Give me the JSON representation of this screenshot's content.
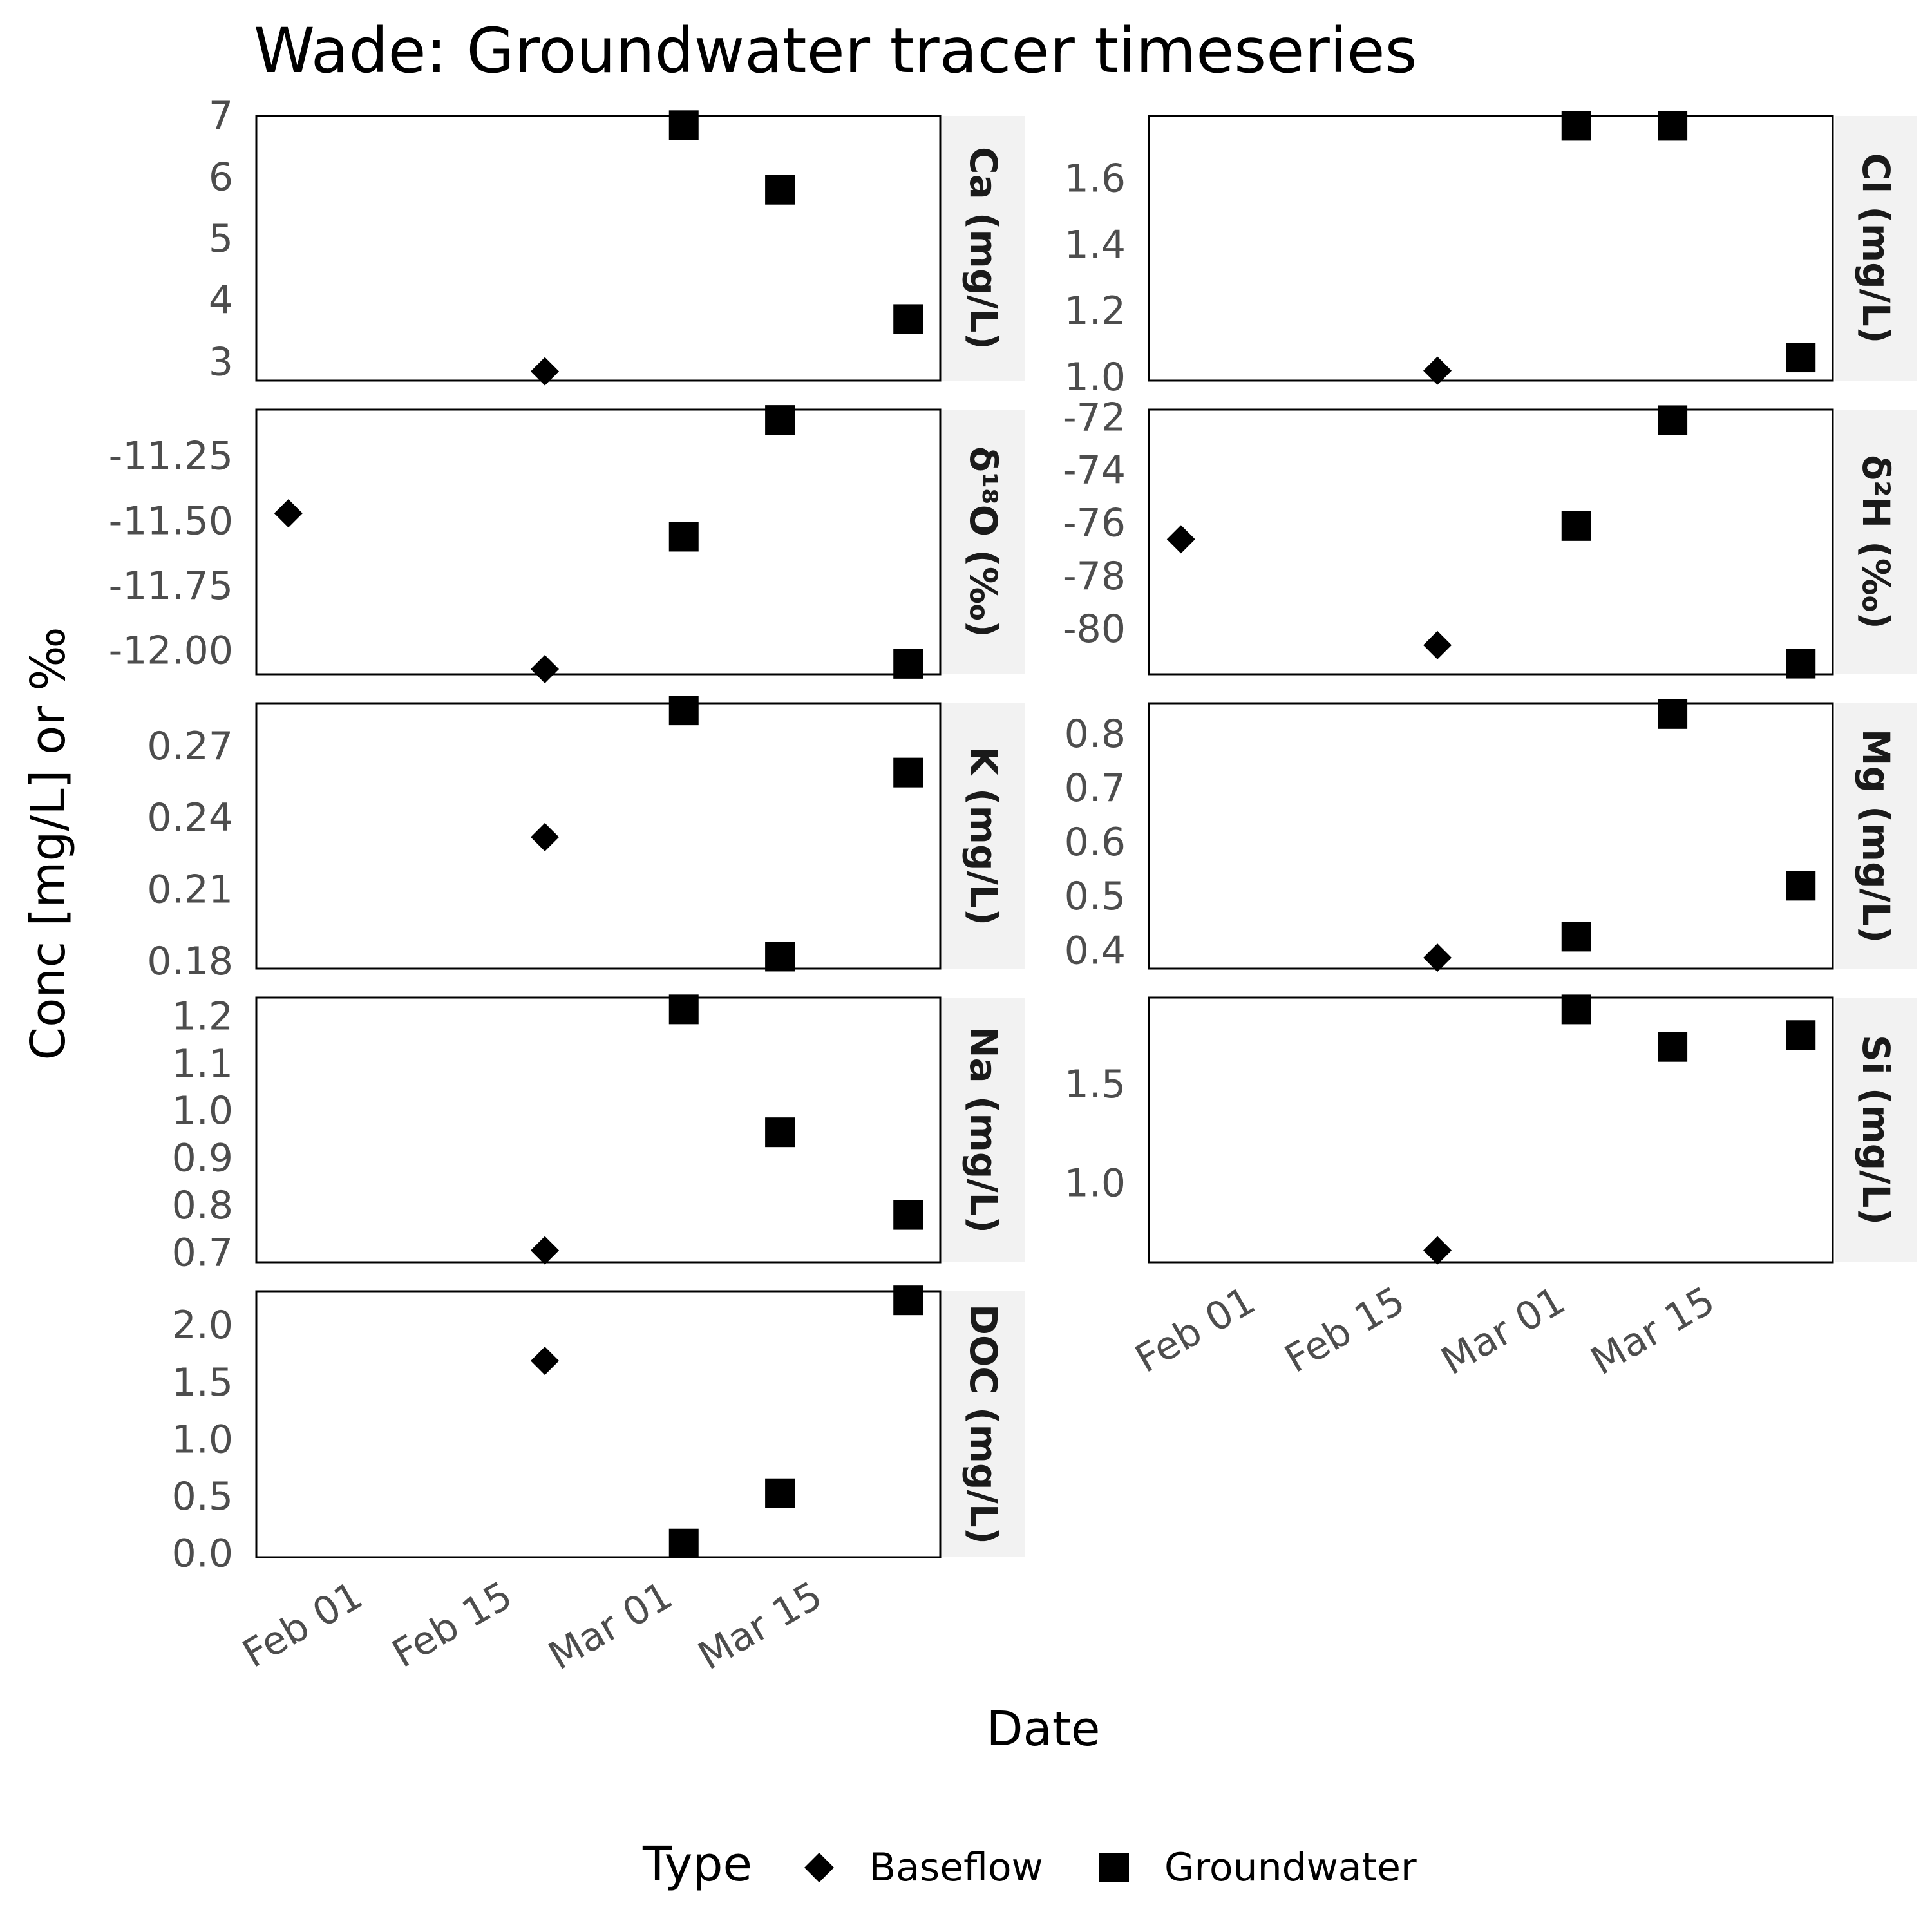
{
  "chart_data": {
    "type": "scatter",
    "title": "Wade: Groundwater tracer timeseries",
    "xlabel": "Date",
    "ylabel": "Conc [mg/L] or ‰",
    "x_ticks": [
      "2024-02-01",
      "2024-02-15",
      "2024-03-01",
      "2024-03-15"
    ],
    "x_tick_labels": [
      "Feb 01",
      "Feb 15",
      "Mar 01",
      "Mar 15"
    ],
    "xlim": [
      "2024-01-23",
      "2024-03-27"
    ],
    "legend": {
      "title": "Type",
      "position": "bottom",
      "entries": [
        {
          "label": "Baseflow",
          "shape": "diamond"
        },
        {
          "label": "Groundwater",
          "shape": "square"
        }
      ]
    },
    "panels": [
      {
        "label": "Ca (mg/L)",
        "ylim": [
          2.7,
          7.0
        ],
        "yticks": [
          3,
          4,
          5,
          6,
          7
        ],
        "ytick_labels": [
          "3",
          "4",
          "5",
          "6",
          "7"
        ],
        "points": [
          {
            "type": "Baseflow",
            "date": "2024-02-19",
            "value": 2.85
          },
          {
            "type": "Groundwater",
            "date": "2024-03-03",
            "value": 6.85
          },
          {
            "type": "Groundwater",
            "date": "2024-03-12",
            "value": 5.8
          },
          {
            "type": "Groundwater",
            "date": "2024-03-24",
            "value": 3.7
          }
        ]
      },
      {
        "label": "Cl (mg/L)",
        "ylim": [
          0.99,
          1.79
        ],
        "yticks": [
          1.0,
          1.2,
          1.4,
          1.6
        ],
        "ytick_labels": [
          "1.0",
          "1.2",
          "1.4",
          "1.6"
        ],
        "points": [
          {
            "type": "Baseflow",
            "date": "2024-02-19",
            "value": 1.02
          },
          {
            "type": "Groundwater",
            "date": "2024-03-03",
            "value": 1.76
          },
          {
            "type": "Groundwater",
            "date": "2024-03-12",
            "value": 1.76
          },
          {
            "type": "Groundwater",
            "date": "2024-03-24",
            "value": 1.06
          }
        ]
      },
      {
        "label": "δ¹⁸O (‰)",
        "ylim": [
          -12.09,
          -11.07
        ],
        "yticks": [
          -12.0,
          -11.75,
          -11.5,
          -11.25
        ],
        "ytick_labels": [
          "-12.00",
          "-11.75",
          "-11.50",
          "-11.25"
        ],
        "points": [
          {
            "type": "Baseflow",
            "date": "2024-01-26",
            "value": -11.47
          },
          {
            "type": "Baseflow",
            "date": "2024-02-19",
            "value": -12.07
          },
          {
            "type": "Groundwater",
            "date": "2024-03-03",
            "value": -11.56
          },
          {
            "type": "Groundwater",
            "date": "2024-03-12",
            "value": -11.11
          },
          {
            "type": "Groundwater",
            "date": "2024-03-24",
            "value": -12.05
          }
        ]
      },
      {
        "label": "δ²H (‰)",
        "ylim": [
          -81.7,
          -71.7
        ],
        "yticks": [
          -80,
          -78,
          -76,
          -74,
          -72
        ],
        "ytick_labels": [
          "-80",
          "-78",
          "-76",
          "-74",
          "-72"
        ],
        "points": [
          {
            "type": "Baseflow",
            "date": "2024-01-26",
            "value": -76.6
          },
          {
            "type": "Baseflow",
            "date": "2024-02-19",
            "value": -80.6
          },
          {
            "type": "Groundwater",
            "date": "2024-03-03",
            "value": -76.1
          },
          {
            "type": "Groundwater",
            "date": "2024-03-12",
            "value": -72.1
          },
          {
            "type": "Groundwater",
            "date": "2024-03-24",
            "value": -81.3
          }
        ]
      },
      {
        "label": "K (mg/L)",
        "ylim": [
          0.177,
          0.288
        ],
        "yticks": [
          0.18,
          0.21,
          0.24,
          0.27
        ],
        "ytick_labels": [
          "0.18",
          "0.21",
          "0.24",
          "0.27"
        ],
        "points": [
          {
            "type": "Baseflow",
            "date": "2024-02-19",
            "value": 0.232
          },
          {
            "type": "Groundwater",
            "date": "2024-03-03",
            "value": 0.285
          },
          {
            "type": "Groundwater",
            "date": "2024-03-12",
            "value": 0.182
          },
          {
            "type": "Groundwater",
            "date": "2024-03-24",
            "value": 0.259
          }
        ]
      },
      {
        "label": "Mg (mg/L)",
        "ylim": [
          0.367,
          0.857
        ],
        "yticks": [
          0.4,
          0.5,
          0.6,
          0.7,
          0.8
        ],
        "ytick_labels": [
          "0.4",
          "0.5",
          "0.6",
          "0.7",
          "0.8"
        ],
        "points": [
          {
            "type": "Baseflow",
            "date": "2024-02-19",
            "value": 0.387
          },
          {
            "type": "Groundwater",
            "date": "2024-03-03",
            "value": 0.426
          },
          {
            "type": "Groundwater",
            "date": "2024-03-12",
            "value": 0.837
          },
          {
            "type": "Groundwater",
            "date": "2024-03-24",
            "value": 0.52
          }
        ]
      },
      {
        "label": "Na (mg/L)",
        "ylim": [
          0.68,
          1.24
        ],
        "yticks": [
          0.7,
          0.8,
          0.9,
          1.0,
          1.1,
          1.2
        ],
        "ytick_labels": [
          "0.7",
          "0.8",
          "0.9",
          "1.0",
          "1.1",
          "1.2"
        ],
        "points": [
          {
            "type": "Baseflow",
            "date": "2024-02-19",
            "value": 0.705
          },
          {
            "type": "Groundwater",
            "date": "2024-03-03",
            "value": 1.215
          },
          {
            "type": "Groundwater",
            "date": "2024-03-12",
            "value": 0.955
          },
          {
            "type": "Groundwater",
            "date": "2024-03-24",
            "value": 0.78
          }
        ]
      },
      {
        "label": "Si (mg/L)",
        "ylim": [
          0.6,
          1.94
        ],
        "yticks": [
          1.0,
          1.5
        ],
        "ytick_labels": [
          "1.0",
          "1.5"
        ],
        "points": [
          {
            "type": "Baseflow",
            "date": "2024-02-19",
            "value": 0.66
          },
          {
            "type": "Groundwater",
            "date": "2024-03-03",
            "value": 1.88
          },
          {
            "type": "Groundwater",
            "date": "2024-03-12",
            "value": 1.69
          },
          {
            "type": "Groundwater",
            "date": "2024-03-24",
            "value": 1.75
          }
        ]
      },
      {
        "label": "DOC (mg/L)",
        "ylim": [
          -0.03,
          2.3
        ],
        "yticks": [
          0.0,
          0.5,
          1.0,
          1.5,
          2.0
        ],
        "ytick_labels": [
          "0.0",
          "0.5",
          "1.0",
          "1.5",
          "2.0"
        ],
        "points": [
          {
            "type": "Baseflow",
            "date": "2024-02-19",
            "value": 1.69
          },
          {
            "type": "Groundwater",
            "date": "2024-03-03",
            "value": 0.09
          },
          {
            "type": "Groundwater",
            "date": "2024-03-12",
            "value": 0.53
          },
          {
            "type": "Groundwater",
            "date": "2024-03-24",
            "value": 2.22
          }
        ]
      }
    ]
  }
}
